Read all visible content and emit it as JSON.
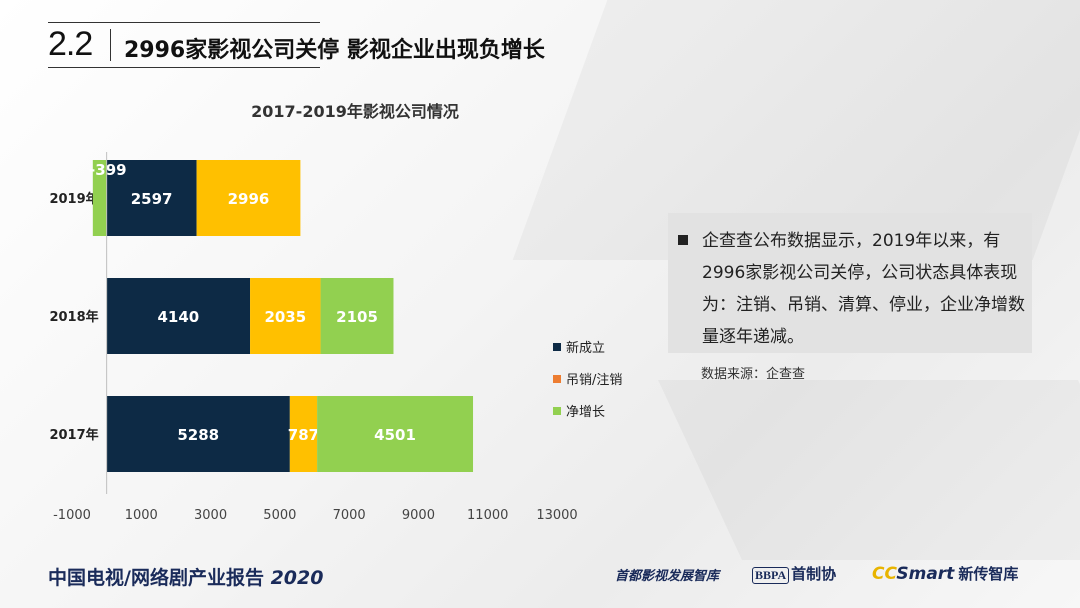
{
  "header": {
    "section_number": "2.2",
    "title": "2996家影视公司关停  影视企业出现负增长"
  },
  "colors": {
    "new": "#0d2a45",
    "revoked": "#ffc000",
    "net": "#92d050",
    "legend_revoked": "#ed7d31"
  },
  "chart_data": {
    "type": "bar",
    "orientation": "horizontal",
    "stacked": true,
    "title": "2017-2019年影视公司情况",
    "categories": [
      "2019年",
      "2018年",
      "2017年"
    ],
    "series": [
      {
        "name": "新成立",
        "values": [
          2597,
          4140,
          5288
        ]
      },
      {
        "name": "吊销/注销",
        "values": [
          2996,
          2035,
          787
        ]
      },
      {
        "name": "净增长",
        "values": [
          -399,
          2105,
          4501
        ]
      }
    ],
    "xlim": [
      -1000,
      13000
    ],
    "xticks": [
      "-1000",
      "1000",
      "3000",
      "5000",
      "7000",
      "9000",
      "11000",
      "13000"
    ],
    "legend": [
      "新成立",
      "吊销/注销",
      "净增长"
    ],
    "legend_position": "right",
    "grid": false
  },
  "info": {
    "text": "企查查公布数据显示，2019年以来，有2996家影视公司关停，公司状态具体表现为：注销、吊销、清算、停业，企业净增数量逐年递减。",
    "source": "数据来源：企查查"
  },
  "footer": {
    "title": "中国电视/网络剧产业报告",
    "year": "2020"
  },
  "logos": {
    "think_tank": "首都影视发展智库",
    "bbpa_mark": "BBPA",
    "bbpa_name": "首制协",
    "ccsmart_mark": "CC",
    "ccsmart_smart": "Smart",
    "ccsmart_name": "新传智库"
  }
}
